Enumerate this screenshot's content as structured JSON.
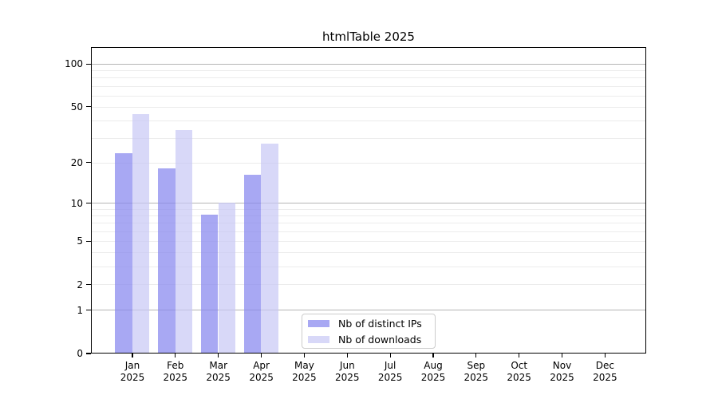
{
  "chart_data": {
    "type": "bar",
    "title": "htmlTable 2025",
    "year_label": "2025",
    "categories": [
      "Jan",
      "Feb",
      "Mar",
      "Apr",
      "May",
      "Jun",
      "Jul",
      "Aug",
      "Sep",
      "Oct",
      "Nov",
      "Dec"
    ],
    "series": [
      {
        "name": "Nb of distinct IPs",
        "color": "rgba(134,134,238,0.72)",
        "values": [
          23,
          18,
          8,
          16,
          0,
          0,
          0,
          0,
          0,
          0,
          0,
          0
        ]
      },
      {
        "name": "Nb of downloads",
        "color": "rgba(199,199,245,0.70)",
        "values": [
          44,
          34,
          10,
          27,
          0,
          0,
          0,
          0,
          0,
          0,
          0,
          0
        ]
      }
    ],
    "xlabel": "",
    "ylabel": "",
    "y_axis": {
      "scale": "log10(1+x)",
      "ticks": [
        100,
        50,
        20,
        10,
        5,
        2,
        1,
        0
      ],
      "major_gridlines": [
        100,
        10,
        1
      ],
      "minor_gridlines": [
        90,
        80,
        70,
        60,
        50,
        40,
        30,
        20,
        9,
        8,
        7,
        6,
        5,
        4,
        3,
        2
      ],
      "ylim": [
        0,
        125
      ]
    },
    "grid": true,
    "legend_position": "lower left-center inside plot"
  },
  "colors": {
    "major_gridline": "#b5b5b5",
    "minor_gridline": "#ececec",
    "axis": "#000000",
    "text": "#000000",
    "series_dark_effective": "#a8a8f0",
    "series_light_effective": "#d7d7f8"
  }
}
